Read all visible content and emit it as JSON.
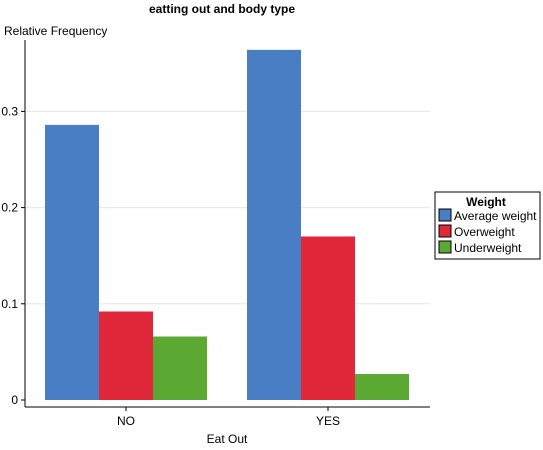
{
  "chart_data": {
    "type": "bar",
    "title": "eatting out and body type",
    "xlabel": "Eat Out",
    "ylabel": "Relative Frequency",
    "categories": [
      "NO",
      "YES"
    ],
    "series": [
      {
        "name": "Average weight",
        "color": "#4a7ec4",
        "values": [
          0.286,
          0.364
        ]
      },
      {
        "name": "Overweight",
        "color": "#e0283a",
        "values": [
          0.092,
          0.17
        ]
      },
      {
        "name": "Underweight",
        "color": "#5ba832",
        "values": [
          0.066,
          0.027
        ]
      }
    ],
    "ylim": [
      0,
      0.375
    ],
    "yticks": [
      0,
      0.1,
      0.2,
      0.3
    ],
    "ytick_labels": [
      "0",
      "0.1",
      "0.2",
      "0.3"
    ],
    "grid": true,
    "legend": {
      "title": "Weight",
      "position": "right"
    }
  }
}
